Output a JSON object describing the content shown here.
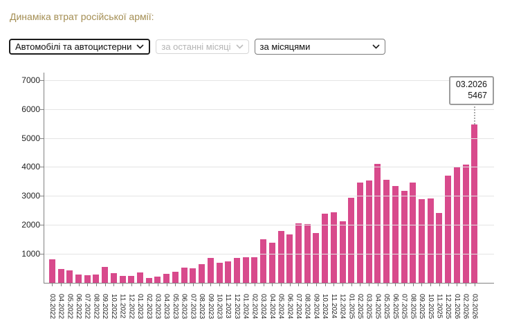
{
  "page": {
    "title": "Динаміка втрат російської армії:"
  },
  "filters": {
    "category": {
      "value": "Автомобілі та автоцистерни"
    },
    "period": {
      "value": "за останні місяці",
      "disabled": true
    },
    "grouping": {
      "value": "за місяцями"
    }
  },
  "tooltip": {
    "label": "03.2026",
    "value": "5467"
  },
  "colors": {
    "bar": "#d84a8c",
    "title": "#a38d52",
    "axis": "#808080",
    "grid": "#e4e4e4"
  },
  "chart_data": {
    "type": "bar",
    "title": "Динаміка втрат російської армії",
    "xlabel": "",
    "ylabel": "",
    "ylim": [
      0,
      7260
    ],
    "yticks": [
      1000,
      2000,
      3000,
      4000,
      5000,
      6000,
      7000
    ],
    "grid": true,
    "legend": false,
    "bar_color": "#d84a8c",
    "categories": [
      "03.2022",
      "04.2022",
      "05.2022",
      "06.2022",
      "07.2022",
      "08.2022",
      "09.2022",
      "10.2022",
      "11.2022",
      "12.2022",
      "01.2023",
      "02.2023",
      "03.2023",
      "04.2023",
      "05.2023",
      "06.2023",
      "07.2023",
      "08.2023",
      "09.2023",
      "10.2023",
      "11.2023",
      "12.2023",
      "01.2024",
      "02.2024",
      "03.2024",
      "04.2024",
      "05.2024",
      "06.2024",
      "07.2024",
      "08.2024",
      "09.2024",
      "10.2024",
      "11.2024",
      "12.2024",
      "01.2025",
      "02.2025",
      "03.2025",
      "04.2025",
      "05.2025",
      "06.2025",
      "07.2025",
      "08.2025",
      "09.2025",
      "10.2025",
      "11.2025",
      "12.2025",
      "01.2026",
      "02.2026",
      "03.2026"
    ],
    "values": [
      810,
      470,
      430,
      280,
      255,
      290,
      550,
      330,
      230,
      250,
      350,
      165,
      210,
      310,
      390,
      530,
      490,
      650,
      860,
      700,
      730,
      870,
      895,
      880,
      1500,
      1380,
      1790,
      1660,
      2050,
      2030,
      1710,
      2380,
      2430,
      2120,
      2930,
      3470,
      3530,
      4110,
      3550,
      3330,
      3170,
      3470,
      2880,
      2920,
      2400,
      3700,
      4000,
      4070,
      5467
    ],
    "annotation": {
      "category": "03.2026",
      "value": 5467
    }
  }
}
